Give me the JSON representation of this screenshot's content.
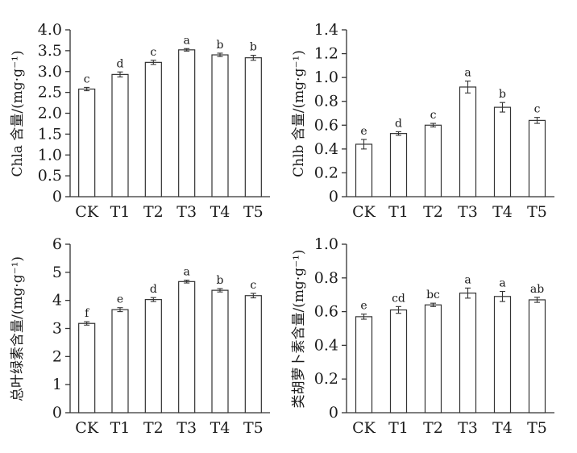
{
  "chart_data": [
    {
      "type": "bar",
      "ylabel": "Chla 含量/(mg·g⁻¹)",
      "categories": [
        "CK",
        "T1",
        "T2",
        "T3",
        "T4",
        "T5"
      ],
      "values": [
        2.58,
        2.93,
        3.22,
        3.52,
        3.4,
        3.33
      ],
      "errors": [
        0.04,
        0.06,
        0.05,
        0.03,
        0.04,
        0.06
      ],
      "significance": [
        "c",
        "d",
        "c",
        "a",
        "b",
        "b"
      ],
      "ylim": [
        0,
        4.0
      ],
      "yticks": [
        "0",
        "0.5",
        "1.0",
        "1.5",
        "2.0",
        "2.5",
        "3.0",
        "3.5",
        "4.0"
      ],
      "grid": false
    },
    {
      "type": "bar",
      "ylabel": "Chlb 含量/(mg·g⁻¹)",
      "categories": [
        "CK",
        "T1",
        "T2",
        "T3",
        "T4",
        "T5"
      ],
      "values": [
        0.44,
        0.53,
        0.6,
        0.92,
        0.75,
        0.64
      ],
      "errors": [
        0.04,
        0.015,
        0.015,
        0.05,
        0.04,
        0.025
      ],
      "significance": [
        "e",
        "d",
        "c",
        "a",
        "b",
        "c"
      ],
      "ylim": [
        0,
        1.4
      ],
      "yticks": [
        "0",
        "0.2",
        "0.4",
        "0.6",
        "0.8",
        "1.0",
        "1.2",
        "1.4"
      ],
      "grid": false
    },
    {
      "type": "bar",
      "ylabel": "总叶绿素含量/(mg·g⁻¹)",
      "categories": [
        "CK",
        "T1",
        "T2",
        "T3",
        "T4",
        "T5"
      ],
      "values": [
        3.18,
        3.67,
        4.03,
        4.67,
        4.36,
        4.17
      ],
      "errors": [
        0.06,
        0.07,
        0.07,
        0.05,
        0.06,
        0.08
      ],
      "significance": [
        "f",
        "e",
        "d",
        "a",
        "b",
        "c"
      ],
      "ylim": [
        0,
        6
      ],
      "yticks": [
        "0",
        "1",
        "2",
        "3",
        "4",
        "5",
        "6"
      ],
      "grid": false
    },
    {
      "type": "bar",
      "ylabel": "类胡萝卜素含量/(mg·g⁻¹)",
      "categories": [
        "CK",
        "T1",
        "T2",
        "T3",
        "T4",
        "T5"
      ],
      "values": [
        0.57,
        0.61,
        0.64,
        0.71,
        0.69,
        0.67
      ],
      "errors": [
        0.015,
        0.02,
        0.01,
        0.03,
        0.03,
        0.015
      ],
      "significance": [
        "e",
        "cd",
        "bc",
        "a",
        "a",
        "ab"
      ],
      "ylim": [
        0,
        1.0
      ],
      "yticks": [
        "0",
        "0.2",
        "0.4",
        "0.6",
        "0.8",
        "1.0"
      ],
      "grid": false
    }
  ]
}
